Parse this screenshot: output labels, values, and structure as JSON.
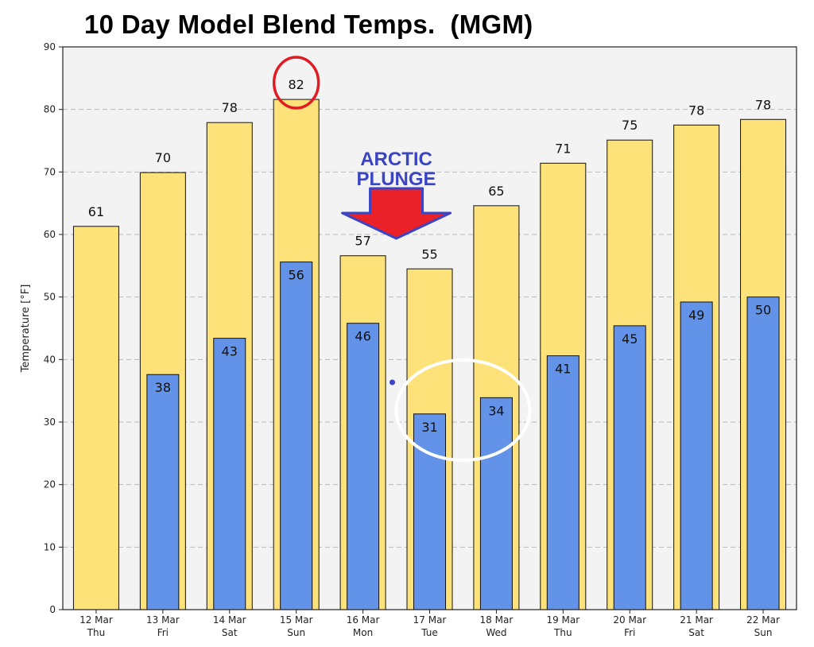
{
  "title": "10 Day Model Blend Temps.  (MGM)",
  "annotation": {
    "line1": "ARCTIC",
    "line2": "PLUNGE"
  },
  "colors": {
    "high": "#fde27a",
    "low": "#6393e9",
    "annotation": "#3b45c4",
    "arrow": "#ea2128",
    "circle_red": "#e01b22",
    "circle_white": "#ffffff",
    "plot_bg": "#f3f3f3"
  },
  "chart_data": {
    "type": "bar",
    "title": "10 Day Model Blend Temps.  (MGM)",
    "ylabel": "Temperature [°F]",
    "xlabel": "",
    "ylim": [
      0,
      90
    ],
    "yticks": [
      0,
      10,
      20,
      30,
      40,
      50,
      60,
      70,
      80,
      90
    ],
    "grid": true,
    "categories": [
      [
        "12 Mar",
        "Thu"
      ],
      [
        "13 Mar",
        "Fri"
      ],
      [
        "14 Mar",
        "Sat"
      ],
      [
        "15 Mar",
        "Sun"
      ],
      [
        "16 Mar",
        "Mon"
      ],
      [
        "17 Mar",
        "Tue"
      ],
      [
        "18 Mar",
        "Wed"
      ],
      [
        "19 Mar",
        "Thu"
      ],
      [
        "20 Mar",
        "Fri"
      ],
      [
        "21 Mar",
        "Sat"
      ],
      [
        "22 Mar",
        "Sun"
      ]
    ],
    "series": [
      {
        "key": "high",
        "values": [
          61.3,
          69.9,
          77.9,
          81.6,
          56.6,
          54.5,
          64.6,
          71.4,
          75.1,
          77.5,
          78.4
        ],
        "labels": [
          "61",
          "70",
          "78",
          "82",
          "57",
          "55",
          "65",
          "71",
          "75",
          "78",
          "78"
        ]
      },
      {
        "key": "low",
        "values": [
          null,
          37.6,
          43.4,
          55.6,
          45.8,
          31.3,
          33.9,
          40.6,
          45.4,
          49.2,
          50.0
        ],
        "labels": [
          "",
          "38",
          "43",
          "56",
          "46",
          "31",
          "34",
          "41",
          "45",
          "49",
          "50"
        ]
      }
    ]
  }
}
